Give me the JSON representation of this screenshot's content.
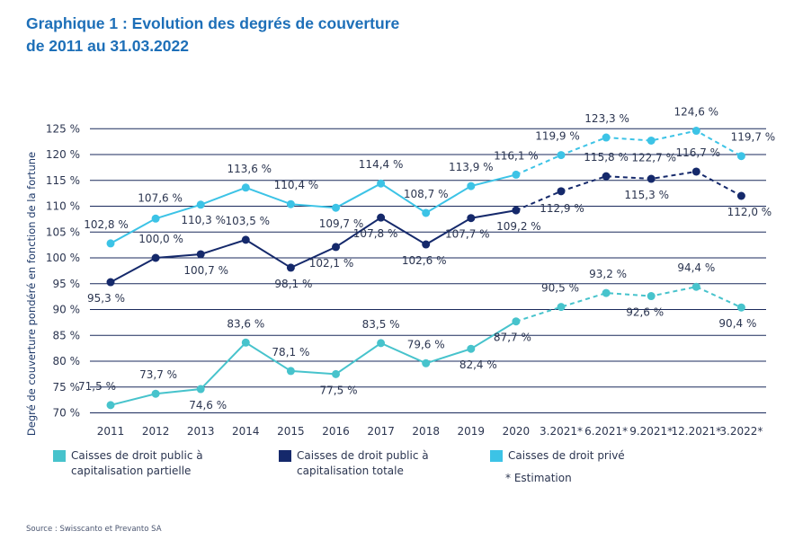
{
  "title": {
    "line1": "Graphique 1 : Evolution des degrés de couverture",
    "line2": "de 2011 au 31.03.2022"
  },
  "colors": {
    "partielle": "#47c3cc",
    "totale": "#15296b",
    "prive": "#3cc3e6",
    "grid": "#1a2a5c"
  },
  "legend": {
    "partielle": "Caisses de droit public à capitalisation partielle",
    "totale": "Caisses de droit public à capitalisation totale",
    "prive": "Caisses de droit privé",
    "estimation_note": "* Estimation"
  },
  "source": "Source : Swisscanto et Prevanto SA",
  "chart_data": {
    "type": "line",
    "title": "Graphique 1 : Evolution des degrés de couverture de 2011 au 31.03.2022",
    "xlabel": "",
    "ylabel": "Degré de couverture pondéré en fonction de la fortune",
    "ylim": [
      70,
      125
    ],
    "y_ticks": [
      "70 %",
      "75 %",
      "80 %",
      "85 %",
      "90 %",
      "95 %",
      "100 %",
      "105 %",
      "110 %",
      "115 %",
      "120 %",
      "125 %"
    ],
    "categories": [
      "2011",
      "2012",
      "2013",
      "2014",
      "2015",
      "2016",
      "2017",
      "2018",
      "2019",
      "2020",
      "3.2021*",
      "6.2021*",
      "9.2021*",
      "12.2021*",
      "3.2022*"
    ],
    "estimated_from_index": 10,
    "series": [
      {
        "key": "prive",
        "name": "Caisses de droit privé",
        "values": [
          102.8,
          107.6,
          110.3,
          113.6,
          110.4,
          109.7,
          114.4,
          108.7,
          113.9,
          116.1,
          119.9,
          123.3,
          122.7,
          124.6,
          119.7
        ],
        "labels": [
          "102,8 %",
          "107,6 %",
          "110,3 %",
          "113,6 %",
          "110,4 %",
          "109,7 %",
          "114,4 %",
          "108,7 %",
          "113,9 %",
          "116,1 %",
          "119,9 %",
          "123,3 %",
          "122,7 %",
          "124,6 %",
          "119,7 %"
        ]
      },
      {
        "key": "totale",
        "name": "Caisses de droit public à capitalisation totale",
        "values": [
          95.3,
          100.0,
          100.7,
          103.5,
          98.1,
          102.1,
          107.8,
          102.6,
          107.7,
          109.2,
          112.9,
          115.8,
          115.3,
          116.7,
          112.0
        ],
        "labels": [
          "95,3 %",
          "100,0 %",
          "100,7 %",
          "103,5 %",
          "98,1 %",
          "102,1 %",
          "107,8 %",
          "102,6 %",
          "107,7 %",
          "109,2 %",
          "112,9 %",
          "115,8 %",
          "115,3 %",
          "116,7 %",
          "112,0 %"
        ]
      },
      {
        "key": "partielle",
        "name": "Caisses de droit public à capitalisation partielle",
        "values": [
          71.5,
          73.7,
          74.6,
          83.6,
          78.1,
          77.5,
          83.5,
          79.6,
          82.4,
          87.7,
          90.5,
          93.2,
          92.6,
          94.4,
          90.4
        ],
        "labels": [
          "71,5 %",
          "73,7 %",
          "74,6 %",
          "83,6 %",
          "78,1 %",
          "77,5 %",
          "83,5 %",
          "79,6 %",
          "82,4 %",
          "87,7 %",
          "90,5 %",
          "93,2 %",
          "92,6 %",
          "94,4 %",
          "90,4 %"
        ]
      }
    ]
  }
}
